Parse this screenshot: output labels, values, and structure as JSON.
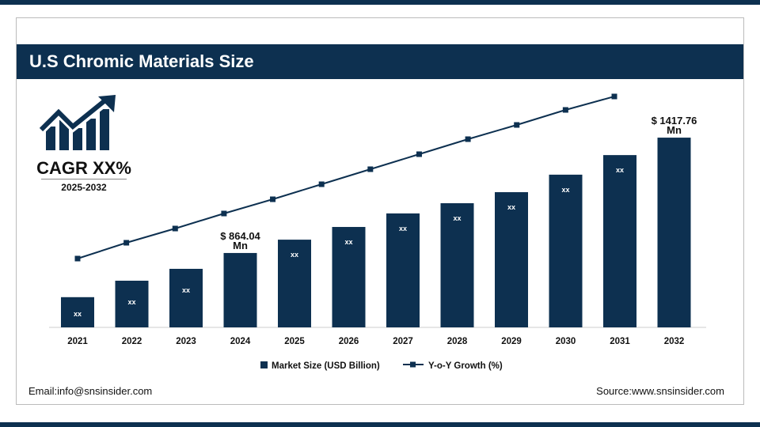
{
  "header": {
    "title": "U.S Chromic Materials Size"
  },
  "cagr": {
    "label": "CAGR XX%",
    "period": "2025-2032",
    "icon": "growth-chart-icon"
  },
  "footer": {
    "email": "Email:info@snsinsider.com",
    "source": "Source:www.snsinsider.com"
  },
  "colors": {
    "primary": "#0d3050"
  },
  "chart_data": {
    "type": "bar",
    "categories": [
      "2021",
      "2022",
      "2023",
      "2024",
      "2025",
      "2026",
      "2027",
      "2028",
      "2029",
      "2030",
      "2031",
      "2032"
    ],
    "series": [
      {
        "name": "Market Size (USD Billion)",
        "type": "bar",
        "values": [
          652,
          731,
          788,
          864.04,
          928,
          989,
          1054,
          1103,
          1156,
          1240,
          1334,
          1417.76
        ],
        "data_labels": [
          "xx",
          "xx",
          "xx",
          "$ 864.04 Mn",
          "xx",
          "xx",
          "xx",
          "xx",
          "xx",
          "xx",
          "xx",
          "$ 1417.76 Mn"
        ]
      },
      {
        "name": "Y-o-Y Growth (%)",
        "type": "line",
        "values": [
          0,
          20,
          38,
          57,
          75,
          94,
          113,
          132,
          151,
          169,
          188,
          205
        ]
      }
    ],
    "ylim": [
      507,
      1418
    ],
    "legend": "bottom",
    "grid": false
  }
}
